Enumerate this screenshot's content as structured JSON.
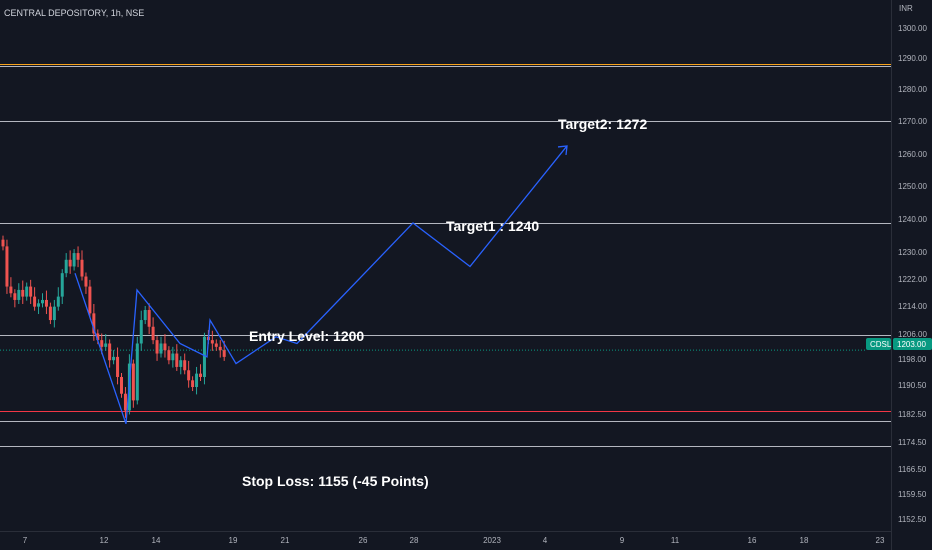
{
  "header": {
    "title": "CENTRAL DEPOSITORY, 1h, NSE",
    "currency": "INR"
  },
  "price_scale": {
    "ticks": [
      "1300.00",
      "1290.00",
      "1280.00",
      "1270.00",
      "1260.00",
      "1250.00",
      "1240.00",
      "1230.00",
      "1222.00",
      "1214.00",
      "1206.00",
      "1198.00",
      "1190.50",
      "1182.50",
      "1174.50",
      "1166.50",
      "1159.50",
      "1152.50"
    ],
    "current_symbol": "CDSL",
    "current_price": "1203.00"
  },
  "time_scale": {
    "ticks": [
      "7",
      "12",
      "14",
      "19",
      "21",
      "26",
      "28",
      "2023",
      "4",
      "9",
      "11",
      "16",
      "18",
      "23"
    ]
  },
  "annotations": {
    "target2": "Target2: 1272",
    "target1": "Target1 : 1240",
    "entry": "Entry Level: 1200",
    "stop_loss": "Stop Loss: 1155 (-45 Points)"
  },
  "colors": {
    "background": "#131722",
    "up": "#26a69a",
    "down": "#ef5350",
    "projection": "#2962ff",
    "level_line": "#d1d4dc",
    "orange_line": "#f7a21b",
    "red_line": "#f23645",
    "current_badge": "#089981"
  },
  "chart_data": {
    "type": "candlestick",
    "title": "CENTRAL DEPOSITORY, 1h, NSE",
    "currency": "INR",
    "current_price": 1203.0,
    "y_range": [
      1149,
      1304
    ],
    "horizontal_levels": [
      {
        "price": 1288.6,
        "color": "orange"
      },
      {
        "price": 1288.0,
        "color": "white"
      },
      {
        "price": 1271.5,
        "color": "white"
      },
      {
        "price": 1241.0,
        "color": "white"
      },
      {
        "price": 1207.5,
        "color": "white"
      },
      {
        "price": 1184.8,
        "color": "red"
      },
      {
        "price": 1182.0,
        "color": "white"
      },
      {
        "price": 1174.5,
        "color": "white"
      }
    ],
    "series": [
      {
        "name": "CDSL",
        "close_profile": [
          [
            0,
            1234
          ],
          [
            1,
            1222
          ],
          [
            2,
            1220
          ],
          [
            3,
            1218
          ],
          [
            4,
            1221
          ],
          [
            5,
            1219
          ],
          [
            6,
            1222
          ],
          [
            7,
            1219
          ],
          [
            8,
            1216
          ],
          [
            9,
            1217
          ],
          [
            10,
            1218
          ],
          [
            11,
            1216
          ],
          [
            12,
            1212
          ],
          [
            13,
            1216
          ],
          [
            14,
            1219
          ],
          [
            15,
            1226
          ],
          [
            16,
            1230
          ],
          [
            17,
            1228
          ],
          [
            18,
            1232
          ],
          [
            19,
            1230
          ],
          [
            20,
            1225
          ],
          [
            21,
            1222
          ],
          [
            22,
            1214
          ],
          [
            23,
            1208
          ],
          [
            24,
            1206
          ],
          [
            25,
            1204
          ],
          [
            26,
            1205
          ],
          [
            27,
            1200
          ],
          [
            28,
            1201
          ],
          [
            29,
            1195
          ],
          [
            30,
            1190
          ],
          [
            31,
            1185
          ],
          [
            32,
            1199
          ],
          [
            33,
            1188
          ],
          [
            34,
            1205
          ],
          [
            35,
            1212
          ],
          [
            36,
            1215
          ],
          [
            37,
            1210
          ],
          [
            38,
            1206
          ],
          [
            39,
            1202
          ],
          [
            40,
            1205
          ],
          [
            41,
            1203
          ],
          [
            42,
            1200
          ],
          [
            43,
            1202
          ],
          [
            44,
            1198
          ],
          [
            45,
            1200
          ],
          [
            46,
            1197
          ],
          [
            47,
            1194
          ],
          [
            48,
            1192
          ],
          [
            49,
            1196
          ],
          [
            50,
            1195
          ],
          [
            51,
            1207
          ],
          [
            52,
            1206
          ],
          [
            53,
            1205
          ],
          [
            54,
            1204
          ],
          [
            55,
            1203
          ],
          [
            56,
            1201
          ]
        ]
      }
    ],
    "projection_path": [
      {
        "date": "Dec 8",
        "price": 1226
      },
      {
        "date": "Dec 12",
        "price": 1181
      },
      {
        "date": "Dec 13",
        "price": 1221
      },
      {
        "date": "Dec 15",
        "price": 1205
      },
      {
        "date": "Dec 16",
        "price": 1201
      },
      {
        "date": "Dec 16",
        "price": 1212
      },
      {
        "date": "Dec 19",
        "price": 1199
      },
      {
        "date": "Dec 20",
        "price": 1207
      },
      {
        "date": "Dec 21",
        "price": 1205
      },
      {
        "date": "Dec 28",
        "price": 1241
      },
      {
        "date": "Jan 2",
        "price": 1228
      },
      {
        "date": "Jan 6",
        "price": 1264
      }
    ]
  }
}
